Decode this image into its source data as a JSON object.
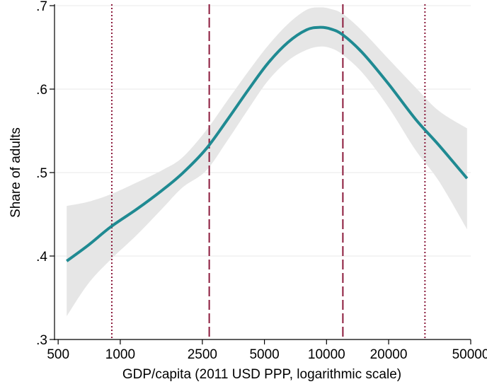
{
  "chart_data": {
    "type": "line",
    "title": "",
    "xlabel": "GDP/capita (2011 USD PPP, logarithmic scale)",
    "ylabel": "Share of adults",
    "x_scale": "log",
    "xlim": [
      480,
      50000
    ],
    "ylim": [
      0.3,
      0.7
    ],
    "grid": "horizontal",
    "x_ticks": [
      {
        "value": 500,
        "label": "500"
      },
      {
        "value": 1000,
        "label": "1000"
      },
      {
        "value": 2500,
        "label": "2500"
      },
      {
        "value": 5000,
        "label": "5000"
      },
      {
        "value": 10000,
        "label": "10000"
      },
      {
        "value": 20000,
        "label": "20000"
      },
      {
        "value": 50000,
        "label": "50000"
      }
    ],
    "y_ticks": [
      {
        "value": 0.3,
        "label": ".3"
      },
      {
        "value": 0.4,
        "label": ".4"
      },
      {
        "value": 0.5,
        "label": ".5"
      },
      {
        "value": 0.6,
        "label": ".6"
      },
      {
        "value": 0.7,
        "label": ".7"
      }
    ],
    "series": [
      {
        "color": "#1f8a92",
        "band_color": "#e6e6e6",
        "x": [
          550,
          700,
          900,
          1200,
          1600,
          2000,
          2600,
          3300,
          4200,
          5200,
          6500,
          8000,
          9300,
          10500,
          12000,
          15000,
          20000,
          27000,
          35000,
          48000
        ],
        "y": [
          0.394,
          0.413,
          0.435,
          0.456,
          0.479,
          0.499,
          0.528,
          0.563,
          0.6,
          0.631,
          0.656,
          0.671,
          0.674,
          0.672,
          0.665,
          0.643,
          0.606,
          0.564,
          0.533,
          0.493
        ],
        "lower": [
          0.328,
          0.367,
          0.396,
          0.425,
          0.457,
          0.482,
          0.502,
          0.538,
          0.577,
          0.61,
          0.634,
          0.647,
          0.651,
          0.649,
          0.641,
          0.619,
          0.578,
          0.527,
          0.49,
          0.432
        ],
        "upper": [
          0.46,
          0.465,
          0.474,
          0.488,
          0.503,
          0.518,
          0.55,
          0.586,
          0.622,
          0.652,
          0.678,
          0.695,
          0.698,
          0.696,
          0.69,
          0.669,
          0.636,
          0.602,
          0.574,
          0.553
        ]
      }
    ],
    "reference_lines": [
      {
        "x": 910,
        "style": "dotted",
        "color": "#8b1a3c"
      },
      {
        "x": 2700,
        "style": "dashed",
        "color": "#8b1a3c"
      },
      {
        "x": 12000,
        "style": "dashed",
        "color": "#8b1a3c"
      },
      {
        "x": 30000,
        "style": "dotted",
        "color": "#8b1a3c"
      }
    ]
  }
}
